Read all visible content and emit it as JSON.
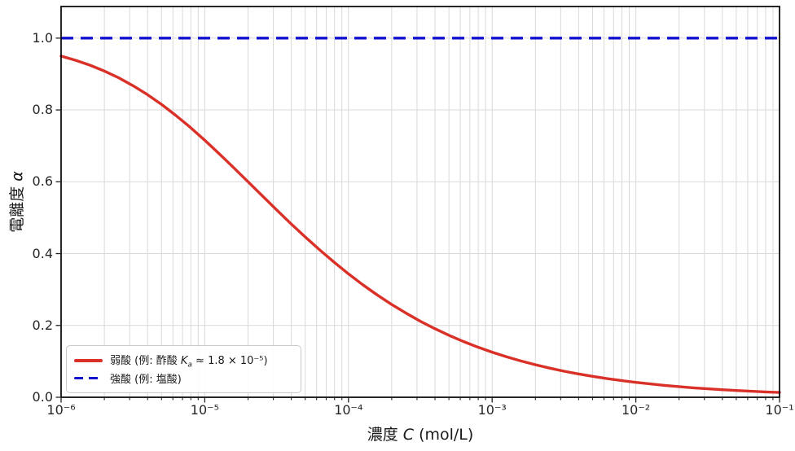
{
  "chart_data": {
    "type": "line",
    "title": "",
    "xlabel": {
      "prefix": "濃度 ",
      "symbol": "C",
      "suffix": " (mol/L)"
    },
    "ylabel": {
      "prefix": "電離度 ",
      "symbol": "α"
    },
    "x_scale": "log",
    "xlim_log10": [
      -6,
      -1
    ],
    "ylim": [
      0,
      1.088
    ],
    "grid": true,
    "grid_color": "#d9d9d9",
    "legend_position": "lower-left",
    "x_ticks": [
      {
        "log10": -6,
        "label": "10⁻⁶"
      },
      {
        "log10": -5,
        "label": "10⁻⁵"
      },
      {
        "log10": -4,
        "label": "10⁻⁴"
      },
      {
        "log10": -3,
        "label": "10⁻³"
      },
      {
        "log10": -2,
        "label": "10⁻²"
      },
      {
        "log10": -1,
        "label": "10⁻¹"
      }
    ],
    "y_ticks": [
      {
        "value": 0.0,
        "label": "0.0"
      },
      {
        "value": 0.2,
        "label": "0.2"
      },
      {
        "value": 0.4,
        "label": "0.4"
      },
      {
        "value": 0.6,
        "label": "0.6"
      },
      {
        "value": 0.8,
        "label": "0.8"
      },
      {
        "value": 1.0,
        "label": "1.0"
      }
    ],
    "series": [
      {
        "name": "weak-acid",
        "label": "弱酸 (例: 酢酸 Kₐ ≈ 1.8 × 10⁻⁵)",
        "ka": 1.8e-05,
        "color": "#d93128",
        "style": "solid",
        "x_log10": [
          -6.0,
          -5.9,
          -5.8,
          -5.7,
          -5.6,
          -5.5,
          -5.4,
          -5.3,
          -5.2,
          -5.1,
          -5.0,
          -4.9,
          -4.8,
          -4.7,
          -4.6,
          -4.5,
          -4.4,
          -4.3,
          -4.2,
          -4.1,
          -4.0,
          -3.9,
          -3.8,
          -3.7,
          -3.6,
          -3.5,
          -3.4,
          -3.3,
          -3.2,
          -3.1,
          -3.0,
          -2.9,
          -2.8,
          -2.7,
          -2.6,
          -2.5,
          -2.4,
          -2.3,
          -2.2,
          -2.1,
          -2.0,
          -1.9,
          -1.8,
          -1.7,
          -1.6,
          -1.5,
          -1.4,
          -1.3,
          -1.2,
          -1.1,
          -1.0
        ],
        "y": [
          0.9499,
          0.9384,
          0.9247,
          0.9085,
          0.8896,
          0.8677,
          0.8429,
          0.815,
          0.7843,
          0.7511,
          0.7155,
          0.6783,
          0.6397,
          0.6004,
          0.5609,
          0.5218,
          0.4833,
          0.446,
          0.4102,
          0.376,
          0.3437,
          0.3133,
          0.285,
          0.2586,
          0.2343,
          0.2118,
          0.1912,
          0.1724,
          0.1552,
          0.1396,
          0.1255,
          0.1126,
          0.101,
          0.0906,
          0.0811,
          0.0726,
          0.065,
          0.0582,
          0.052,
          0.0465,
          0.0415,
          0.0371,
          0.0331,
          0.0296,
          0.0264,
          0.0236,
          0.021,
          0.0188,
          0.0167,
          0.0149,
          0.0133
        ]
      },
      {
        "name": "strong-acid",
        "label": "強酸 (例: 塩酸)",
        "color": "#1212cf",
        "style": "dashed",
        "y_constant": 1.0
      }
    ]
  },
  "legend": {
    "entries": [
      {
        "prefix": "弱酸 (例: 酢酸 ",
        "symbol": "K",
        "sub": "a",
        "rest": " ≈ 1.8 × 10⁻⁵)"
      },
      {
        "label": "強酸 (例: 塩酸)"
      }
    ]
  }
}
